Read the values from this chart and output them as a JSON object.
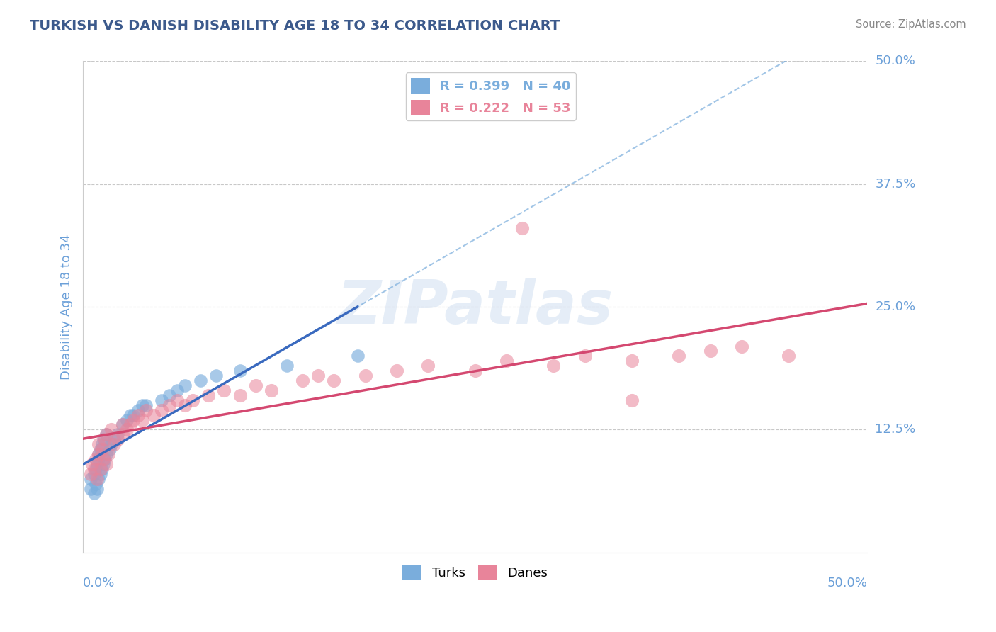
{
  "title": "TURKISH VS DANISH DISABILITY AGE 18 TO 34 CORRELATION CHART",
  "source": "Source: ZipAtlas.com",
  "ylabel": "Disability Age 18 to 34",
  "ytick_labels": [
    "12.5%",
    "25.0%",
    "37.5%",
    "50.0%"
  ],
  "ytick_values": [
    0.125,
    0.25,
    0.375,
    0.5
  ],
  "xmin": 0.0,
  "xmax": 0.5,
  "ymin": 0.0,
  "ymax": 0.5,
  "legend_entries": [
    {
      "label": "R = 0.399   N = 40",
      "color": "#7aaddc"
    },
    {
      "label": "R = 0.222   N = 53",
      "color": "#e8849a"
    }
  ],
  "turks_color": "#7aaddc",
  "danes_color": "#e8849a",
  "turks_line_color": "#3a6abf",
  "danes_line_color": "#d44870",
  "turks_dash_color": "#7aaddc",
  "grid_color": "#c8c8c8",
  "title_color": "#3c5a8c",
  "axis_label_color": "#6a9fd8",
  "watermark_color": "#ccddf0",
  "watermark_text": "ZIPatlas",
  "turks_x": [
    0.005,
    0.005,
    0.007,
    0.007,
    0.008,
    0.008,
    0.009,
    0.009,
    0.01,
    0.01,
    0.01,
    0.011,
    0.011,
    0.012,
    0.012,
    0.013,
    0.013,
    0.014,
    0.015,
    0.015,
    0.017,
    0.018,
    0.02,
    0.022,
    0.025,
    0.028,
    0.03,
    0.032,
    0.035,
    0.038,
    0.04,
    0.05,
    0.055,
    0.06,
    0.065,
    0.075,
    0.085,
    0.1,
    0.13,
    0.175
  ],
  "turks_y": [
    0.065,
    0.075,
    0.06,
    0.08,
    0.07,
    0.085,
    0.065,
    0.09,
    0.075,
    0.095,
    0.1,
    0.08,
    0.105,
    0.085,
    0.11,
    0.09,
    0.115,
    0.095,
    0.1,
    0.12,
    0.105,
    0.11,
    0.115,
    0.12,
    0.13,
    0.135,
    0.14,
    0.14,
    0.145,
    0.15,
    0.15,
    0.155,
    0.16,
    0.165,
    0.17,
    0.175,
    0.18,
    0.185,
    0.19,
    0.2
  ],
  "danes_x": [
    0.005,
    0.006,
    0.007,
    0.008,
    0.009,
    0.01,
    0.01,
    0.011,
    0.012,
    0.013,
    0.014,
    0.015,
    0.015,
    0.016,
    0.018,
    0.02,
    0.022,
    0.025,
    0.025,
    0.028,
    0.03,
    0.032,
    0.035,
    0.038,
    0.04,
    0.045,
    0.05,
    0.055,
    0.06,
    0.065,
    0.07,
    0.08,
    0.09,
    0.1,
    0.11,
    0.12,
    0.14,
    0.15,
    0.16,
    0.18,
    0.2,
    0.22,
    0.25,
    0.27,
    0.3,
    0.32,
    0.35,
    0.38,
    0.4,
    0.42,
    0.28,
    0.35,
    0.45
  ],
  "danes_y": [
    0.08,
    0.09,
    0.085,
    0.095,
    0.075,
    0.1,
    0.11,
    0.085,
    0.105,
    0.095,
    0.115,
    0.09,
    0.12,
    0.1,
    0.125,
    0.11,
    0.115,
    0.12,
    0.13,
    0.125,
    0.13,
    0.135,
    0.14,
    0.135,
    0.145,
    0.14,
    0.145,
    0.15,
    0.155,
    0.15,
    0.155,
    0.16,
    0.165,
    0.16,
    0.17,
    0.165,
    0.175,
    0.18,
    0.175,
    0.18,
    0.185,
    0.19,
    0.185,
    0.195,
    0.19,
    0.2,
    0.195,
    0.2,
    0.205,
    0.21,
    0.33,
    0.155,
    0.2
  ]
}
